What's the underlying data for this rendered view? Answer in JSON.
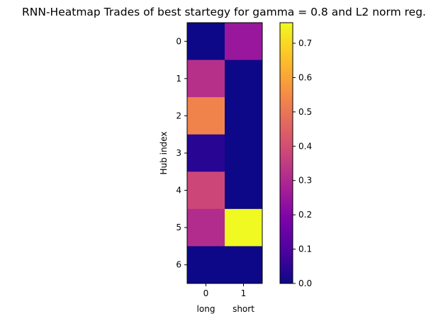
{
  "chart_data": {
    "type": "heatmap",
    "title": "RNN-Heatmap Trades of best startegy for gamma = 0.8 and L2 norm reg.",
    "ylabel": "Hub index",
    "x_ticks": [
      "0",
      "1"
    ],
    "x_category_labels": [
      "long",
      "short"
    ],
    "y_ticks": [
      "0",
      "1",
      "2",
      "3",
      "4",
      "5",
      "6"
    ],
    "values": [
      [
        0.0,
        0.25
      ],
      [
        0.32,
        0.0
      ],
      [
        0.53,
        0.0
      ],
      [
        0.04,
        0.0
      ],
      [
        0.38,
        0.0
      ],
      [
        0.31,
        0.76
      ],
      [
        0.0,
        0.0
      ]
    ],
    "colormap": "plasma",
    "colorbar": {
      "range": [
        0.0,
        0.76
      ],
      "ticks": [
        "0.0",
        "0.1",
        "0.2",
        "0.3",
        "0.4",
        "0.5",
        "0.6",
        "0.7"
      ]
    }
  }
}
